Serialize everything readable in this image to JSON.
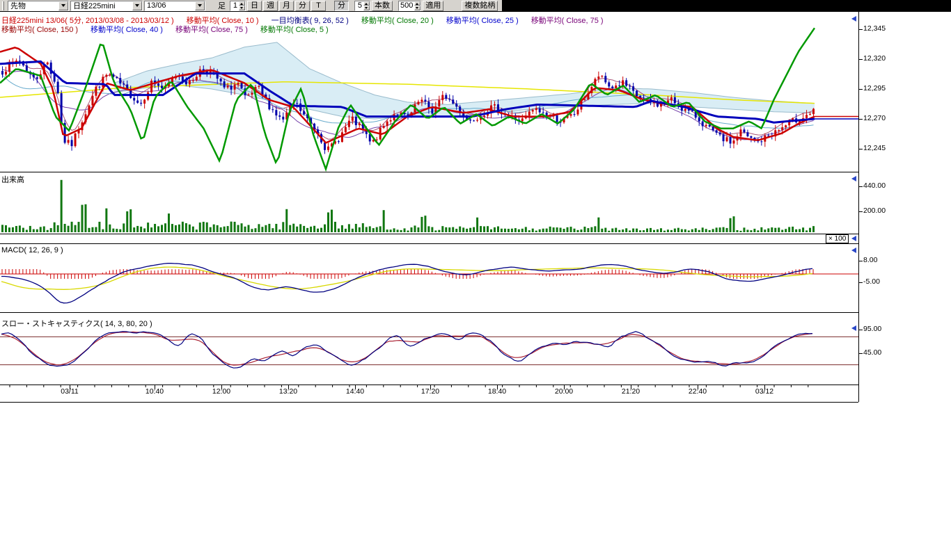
{
  "toolbar": {
    "selects": [
      {
        "id": "category",
        "value": "先物"
      },
      {
        "id": "symbol",
        "value": "日経225mini"
      },
      {
        "id": "contract",
        "value": "13/06"
      }
    ],
    "ashi_label": "足",
    "interval_spinner": "1",
    "period_buttons": [
      {
        "label": "日"
      },
      {
        "label": "週"
      },
      {
        "label": "月"
      },
      {
        "label": "分"
      },
      {
        "label": "T"
      }
    ],
    "minute_button": "分",
    "bars_spinner": "5",
    "bars_button": "本数",
    "count_spinner": "500",
    "apply_button": "適用",
    "multi_symbol_button": "複数銘柄"
  },
  "header": {
    "title": {
      "text": "日経225mini 13/06( 5分, 2013/03/08 - 2013/03/12 )",
      "color": "#cc0000"
    },
    "row1": [
      {
        "text": "移動平均( Close, 10 )",
        "color": "#cc0000"
      },
      {
        "text": "一目均衡表( 9, 26, 52 )",
        "color": "#000080"
      },
      {
        "text": "移動平均( Close, 20 )",
        "color": "#007700"
      },
      {
        "text": "移動平均( Close, 25 )",
        "color": "#0000cc"
      },
      {
        "text": "移動平均( Close, 75 )",
        "color": "#770077"
      }
    ],
    "row2": [
      {
        "text": "移動平均( Close, 150 )",
        "color": "#990000"
      },
      {
        "text": "移動平均( Close, 40 )",
        "color": "#0000cc"
      },
      {
        "text": "移動平均( Close, 75 )",
        "color": "#770077"
      },
      {
        "text": "移動平均( Close, 5 )",
        "color": "#007700"
      }
    ]
  },
  "panes": {
    "volume_title": "出来高",
    "macd_title": "MACD( 12, 26, 9 )",
    "stoch_title": "スロー・ストキャスティクス( 14, 3, 80, 20 )",
    "multiplier": "× 100"
  },
  "axes": {
    "price": [
      "12,345",
      "12,320",
      "12,295",
      "12,270",
      "12,245"
    ],
    "volume": [
      "440.00",
      "200.00"
    ],
    "macd": [
      "8.00",
      "-5.00"
    ],
    "stoch": [
      "95.00",
      "45.00"
    ],
    "time": [
      "03/11",
      "10:40",
      "12:00",
      "13:20",
      "14:40",
      "17:20",
      "18:40",
      "20:00",
      "21:20",
      "22:40",
      "03/12"
    ]
  },
  "chart_data": {
    "type": "candlestick+indicators",
    "seed": 7,
    "bars": 235,
    "price_range": [
      12226,
      12358
    ],
    "close_path": [
      [
        0,
        12310
      ],
      [
        0.02,
        12320
      ],
      [
        0.04,
        12302
      ],
      [
        0.055,
        12318
      ],
      [
        0.068,
        12295
      ],
      [
        0.075,
        12252
      ],
      [
        0.085,
        12248
      ],
      [
        0.1,
        12272
      ],
      [
        0.115,
        12295
      ],
      [
        0.13,
        12308
      ],
      [
        0.15,
        12296
      ],
      [
        0.17,
        12282
      ],
      [
        0.185,
        12302
      ],
      [
        0.2,
        12294
      ],
      [
        0.215,
        12308
      ],
      [
        0.23,
        12299
      ],
      [
        0.245,
        12312
      ],
      [
        0.26,
        12308
      ],
      [
        0.275,
        12294
      ],
      [
        0.29,
        12300
      ],
      [
        0.3,
        12286
      ],
      [
        0.315,
        12296
      ],
      [
        0.33,
        12280
      ],
      [
        0.345,
        12268
      ],
      [
        0.36,
        12284
      ],
      [
        0.375,
        12270
      ],
      [
        0.39,
        12258
      ],
      [
        0.4,
        12243
      ],
      [
        0.415,
        12254
      ],
      [
        0.43,
        12270
      ],
      [
        0.445,
        12260
      ],
      [
        0.455,
        12248
      ],
      [
        0.47,
        12264
      ],
      [
        0.485,
        12276
      ],
      [
        0.5,
        12270
      ],
      [
        0.515,
        12286
      ],
      [
        0.53,
        12276
      ],
      [
        0.545,
        12290
      ],
      [
        0.56,
        12280
      ],
      [
        0.575,
        12268
      ],
      [
        0.59,
        12274
      ],
      [
        0.605,
        12280
      ],
      [
        0.62,
        12274
      ],
      [
        0.64,
        12268
      ],
      [
        0.655,
        12278
      ],
      [
        0.67,
        12274
      ],
      [
        0.69,
        12268
      ],
      [
        0.705,
        12274
      ],
      [
        0.72,
        12290
      ],
      [
        0.735,
        12306
      ],
      [
        0.75,
        12296
      ],
      [
        0.765,
        12300
      ],
      [
        0.78,
        12290
      ],
      [
        0.795,
        12284
      ],
      [
        0.81,
        12282
      ],
      [
        0.825,
        12286
      ],
      [
        0.84,
        12278
      ],
      [
        0.855,
        12272
      ],
      [
        0.87,
        12262
      ],
      [
        0.885,
        12254
      ],
      [
        0.9,
        12250
      ],
      [
        0.91,
        12260
      ],
      [
        0.92,
        12254
      ],
      [
        0.93,
        12250
      ],
      [
        0.945,
        12256
      ],
      [
        0.96,
        12262
      ],
      [
        0.975,
        12268
      ],
      [
        1,
        12276
      ]
    ],
    "ma_green_5": [
      [
        0,
        12300
      ],
      [
        0.02,
        12312
      ],
      [
        0.05,
        12306
      ],
      [
        0.068,
        12272
      ],
      [
        0.085,
        12260
      ],
      [
        0.105,
        12296
      ],
      [
        0.125,
        12336
      ],
      [
        0.14,
        12300
      ],
      [
        0.16,
        12278
      ],
      [
        0.175,
        12250
      ],
      [
        0.19,
        12288
      ],
      [
        0.21,
        12302
      ],
      [
        0.23,
        12280
      ],
      [
        0.25,
        12262
      ],
      [
        0.27,
        12234
      ],
      [
        0.29,
        12286
      ],
      [
        0.31,
        12300
      ],
      [
        0.325,
        12258
      ],
      [
        0.34,
        12231
      ],
      [
        0.355,
        12276
      ],
      [
        0.37,
        12296
      ],
      [
        0.385,
        12256
      ],
      [
        0.4,
        12228
      ],
      [
        0.415,
        12262
      ],
      [
        0.43,
        12282
      ],
      [
        0.45,
        12262
      ],
      [
        0.465,
        12248
      ],
      [
        0.485,
        12268
      ],
      [
        0.505,
        12282
      ],
      [
        0.525,
        12270
      ],
      [
        0.545,
        12280
      ],
      [
        0.565,
        12266
      ],
      [
        0.585,
        12274
      ],
      [
        0.605,
        12264
      ],
      [
        0.625,
        12272
      ],
      [
        0.645,
        12266
      ],
      [
        0.665,
        12274
      ],
      [
        0.685,
        12266
      ],
      [
        0.705,
        12278
      ],
      [
        0.725,
        12300
      ],
      [
        0.745,
        12290
      ],
      [
        0.765,
        12298
      ],
      [
        0.785,
        12284
      ],
      [
        0.805,
        12290
      ],
      [
        0.825,
        12280
      ],
      [
        0.845,
        12284
      ],
      [
        0.865,
        12268
      ],
      [
        0.885,
        12262
      ],
      [
        0.9,
        12262
      ],
      [
        0.92,
        12268
      ],
      [
        0.935,
        12262
      ],
      [
        0.95,
        12286
      ],
      [
        0.965,
        12306
      ],
      [
        0.98,
        12326
      ],
      [
        1,
        12346
      ]
    ],
    "ma_blue_40": [
      [
        0,
        12316
      ],
      [
        0.05,
        12318
      ],
      [
        0.08,
        12300
      ],
      [
        0.13,
        12299
      ],
      [
        0.14,
        12290
      ],
      [
        0.2,
        12290
      ],
      [
        0.24,
        12308
      ],
      [
        0.3,
        12308
      ],
      [
        0.33,
        12294
      ],
      [
        0.36,
        12281
      ],
      [
        0.42,
        12280
      ],
      [
        0.45,
        12272
      ],
      [
        0.58,
        12272
      ],
      [
        0.62,
        12278
      ],
      [
        0.66,
        12282
      ],
      [
        0.78,
        12280
      ],
      [
        0.8,
        12285
      ],
      [
        0.84,
        12280
      ],
      [
        0.88,
        12272
      ],
      [
        0.93,
        12270
      ],
      [
        0.95,
        12267
      ],
      [
        1,
        12270
      ]
    ],
    "ma_red_150": [
      [
        0,
        12326
      ],
      [
        0.02,
        12330
      ],
      [
        0.05,
        12316
      ],
      [
        0.065,
        12295
      ],
      [
        0.078,
        12255
      ],
      [
        0.1,
        12262
      ],
      [
        0.13,
        12300
      ],
      [
        0.16,
        12294
      ],
      [
        0.19,
        12300
      ],
      [
        0.22,
        12306
      ],
      [
        0.26,
        12311
      ],
      [
        0.3,
        12300
      ],
      [
        0.33,
        12286
      ],
      [
        0.36,
        12280
      ],
      [
        0.4,
        12250
      ],
      [
        0.44,
        12262
      ],
      [
        0.47,
        12257
      ],
      [
        0.5,
        12272
      ],
      [
        0.53,
        12280
      ],
      [
        0.57,
        12275
      ],
      [
        0.6,
        12278
      ],
      [
        0.63,
        12272
      ],
      [
        0.67,
        12272
      ],
      [
        0.7,
        12276
      ],
      [
        0.73,
        12296
      ],
      [
        0.76,
        12294
      ],
      [
        0.79,
        12286
      ],
      [
        0.82,
        12282
      ],
      [
        0.85,
        12280
      ],
      [
        0.88,
        12262
      ],
      [
        0.9,
        12255
      ],
      [
        0.93,
        12252
      ],
      [
        0.96,
        12258
      ],
      [
        0.98,
        12266
      ],
      [
        1,
        12272
      ]
    ],
    "ma_yellow_75": [
      [
        0,
        12288
      ],
      [
        0.15,
        12296
      ],
      [
        0.35,
        12301
      ],
      [
        0.5,
        12299
      ],
      [
        0.65,
        12295
      ],
      [
        0.8,
        12290
      ],
      [
        0.9,
        12286
      ],
      [
        1,
        12283
      ]
    ],
    "ichimoku_span_a": [
      [
        0.14,
        12300
      ],
      [
        0.18,
        12310
      ],
      [
        0.22,
        12316
      ],
      [
        0.26,
        12321
      ],
      [
        0.3,
        12330
      ],
      [
        0.34,
        12334
      ],
      [
        0.38,
        12312
      ],
      [
        0.42,
        12300
      ],
      [
        0.46,
        12290
      ],
      [
        0.5,
        12284
      ],
      [
        0.55,
        12282
      ],
      [
        0.6,
        12285
      ],
      [
        0.65,
        12288
      ],
      [
        0.7,
        12291
      ],
      [
        0.75,
        12296
      ],
      [
        0.8,
        12295
      ],
      [
        0.85,
        12292
      ],
      [
        0.9,
        12288
      ],
      [
        0.95,
        12285
      ],
      [
        1,
        12283
      ]
    ],
    "ichimoku_span_b": [
      [
        0.14,
        12292
      ],
      [
        0.18,
        12296
      ],
      [
        0.22,
        12298
      ],
      [
        0.26,
        12295
      ],
      [
        0.3,
        12290
      ],
      [
        0.34,
        12284
      ],
      [
        0.38,
        12278
      ],
      [
        0.42,
        12272
      ],
      [
        0.46,
        12270
      ],
      [
        0.5,
        12272
      ],
      [
        0.55,
        12272
      ],
      [
        0.6,
        12275
      ],
      [
        0.65,
        12278
      ],
      [
        0.7,
        12280
      ],
      [
        0.75,
        12282
      ],
      [
        0.8,
        12283
      ],
      [
        0.85,
        12280
      ],
      [
        0.9,
        12278
      ],
      [
        0.95,
        12276
      ],
      [
        1,
        12275
      ]
    ],
    "macd_line": [
      [
        0,
        -1
      ],
      [
        0.03,
        -3
      ],
      [
        0.055,
        -9
      ],
      [
        0.075,
        -19
      ],
      [
        0.095,
        -15
      ],
      [
        0.125,
        -5
      ],
      [
        0.155,
        2
      ],
      [
        0.185,
        5
      ],
      [
        0.21,
        6.5
      ],
      [
        0.24,
        5
      ],
      [
        0.27,
        0
      ],
      [
        0.29,
        -3
      ],
      [
        0.31,
        -8
      ],
      [
        0.33,
        -10
      ],
      [
        0.35,
        -7
      ],
      [
        0.37,
        -9
      ],
      [
        0.39,
        -12
      ],
      [
        0.41,
        -9
      ],
      [
        0.43,
        -4
      ],
      [
        0.45,
        0
      ],
      [
        0.47,
        3
      ],
      [
        0.49,
        5
      ],
      [
        0.51,
        6
      ],
      [
        0.53,
        4
      ],
      [
        0.55,
        1
      ],
      [
        0.57,
        -1
      ],
      [
        0.59,
        1
      ],
      [
        0.61,
        3
      ],
      [
        0.63,
        4
      ],
      [
        0.65,
        2.5
      ],
      [
        0.67,
        2
      ],
      [
        0.69,
        2
      ],
      [
        0.71,
        3
      ],
      [
        0.73,
        5
      ],
      [
        0.75,
        6
      ],
      [
        0.77,
        5
      ],
      [
        0.79,
        2
      ],
      [
        0.81,
        0
      ],
      [
        0.83,
        1
      ],
      [
        0.85,
        3.5
      ],
      [
        0.87,
        2
      ],
      [
        0.89,
        -2
      ],
      [
        0.91,
        -4.5
      ],
      [
        0.93,
        -4
      ],
      [
        0.95,
        -2
      ],
      [
        0.97,
        0
      ],
      [
        1,
        4
      ]
    ],
    "stoch_k": [
      [
        0,
        85
      ],
      [
        0.01,
        90
      ],
      [
        0.025,
        70
      ],
      [
        0.04,
        40
      ],
      [
        0.055,
        22
      ],
      [
        0.07,
        15
      ],
      [
        0.085,
        22
      ],
      [
        0.1,
        45
      ],
      [
        0.115,
        70
      ],
      [
        0.13,
        88
      ],
      [
        0.145,
        92
      ],
      [
        0.16,
        88
      ],
      [
        0.175,
        92
      ],
      [
        0.19,
        88
      ],
      [
        0.2,
        84
      ],
      [
        0.21,
        68
      ],
      [
        0.22,
        55
      ],
      [
        0.23,
        88
      ],
      [
        0.245,
        84
      ],
      [
        0.26,
        40
      ],
      [
        0.275,
        22
      ],
      [
        0.29,
        10
      ],
      [
        0.3,
        20
      ],
      [
        0.31,
        35
      ],
      [
        0.325,
        28
      ],
      [
        0.34,
        45
      ],
      [
        0.35,
        50
      ],
      [
        0.36,
        35
      ],
      [
        0.375,
        58
      ],
      [
        0.39,
        62
      ],
      [
        0.405,
        45
      ],
      [
        0.42,
        28
      ],
      [
        0.435,
        20
      ],
      [
        0.45,
        35
      ],
      [
        0.465,
        55
      ],
      [
        0.48,
        80
      ],
      [
        0.49,
        85
      ],
      [
        0.5,
        58
      ],
      [
        0.51,
        62
      ],
      [
        0.525,
        78
      ],
      [
        0.54,
        90
      ],
      [
        0.55,
        86
      ],
      [
        0.565,
        70
      ],
      [
        0.575,
        88
      ],
      [
        0.59,
        86
      ],
      [
        0.605,
        70
      ],
      [
        0.62,
        42
      ],
      [
        0.635,
        25
      ],
      [
        0.65,
        40
      ],
      [
        0.665,
        58
      ],
      [
        0.68,
        68
      ],
      [
        0.695,
        62
      ],
      [
        0.71,
        70
      ],
      [
        0.725,
        68
      ],
      [
        0.74,
        62
      ],
      [
        0.75,
        56
      ],
      [
        0.76,
        78
      ],
      [
        0.775,
        90
      ],
      [
        0.785,
        94
      ],
      [
        0.8,
        76
      ],
      [
        0.815,
        58
      ],
      [
        0.83,
        38
      ],
      [
        0.845,
        30
      ],
      [
        0.86,
        24
      ],
      [
        0.875,
        26
      ],
      [
        0.89,
        18
      ],
      [
        0.905,
        24
      ],
      [
        0.92,
        26
      ],
      [
        0.935,
        30
      ],
      [
        0.95,
        55
      ],
      [
        0.965,
        72
      ],
      [
        0.98,
        84
      ],
      [
        0.99,
        90
      ],
      [
        1,
        88
      ]
    ],
    "volume_env": [
      [
        0,
        70
      ],
      [
        0.05,
        80
      ],
      [
        0.1,
        120
      ],
      [
        0.15,
        100
      ],
      [
        0.2,
        90
      ],
      [
        0.25,
        105
      ],
      [
        0.3,
        100
      ],
      [
        0.35,
        95
      ],
      [
        0.4,
        105
      ],
      [
        0.45,
        80
      ],
      [
        0.5,
        65
      ],
      [
        0.55,
        55
      ],
      [
        0.6,
        60
      ],
      [
        0.65,
        50
      ],
      [
        0.7,
        55
      ],
      [
        0.75,
        58
      ],
      [
        0.8,
        48
      ],
      [
        0.85,
        42
      ],
      [
        0.9,
        48
      ],
      [
        0.95,
        52
      ],
      [
        1,
        60
      ]
    ],
    "volume_spikes": [
      [
        0.072,
        450
      ],
      [
        0.1,
        300
      ],
      [
        0.128,
        240
      ],
      [
        0.155,
        215
      ],
      [
        0.205,
        190
      ],
      [
        0.35,
        230
      ],
      [
        0.405,
        200
      ],
      [
        0.47,
        190
      ],
      [
        0.52,
        170
      ],
      [
        0.585,
        160
      ],
      [
        0.735,
        150
      ],
      [
        0.9,
        140
      ]
    ],
    "colors": {
      "candle_up": "#cc0000",
      "candle_down": "#0000aa",
      "volume": "#117711",
      "green_ma": "#009900",
      "blue_ma": "#0000bb",
      "red_ma": "#cc0000",
      "yellow_ma": "#e6e600",
      "cloud_fill": "#cfe9f3",
      "cloud_edge": "#99bbcc",
      "macd": "#000080",
      "signal": "#d8d800",
      "hist": "#cc0000",
      "zero": "#cc0000",
      "stoch_k": "#000080",
      "stoch_d": "#aa2233",
      "stoch_levels": "#7a2a2a"
    }
  }
}
